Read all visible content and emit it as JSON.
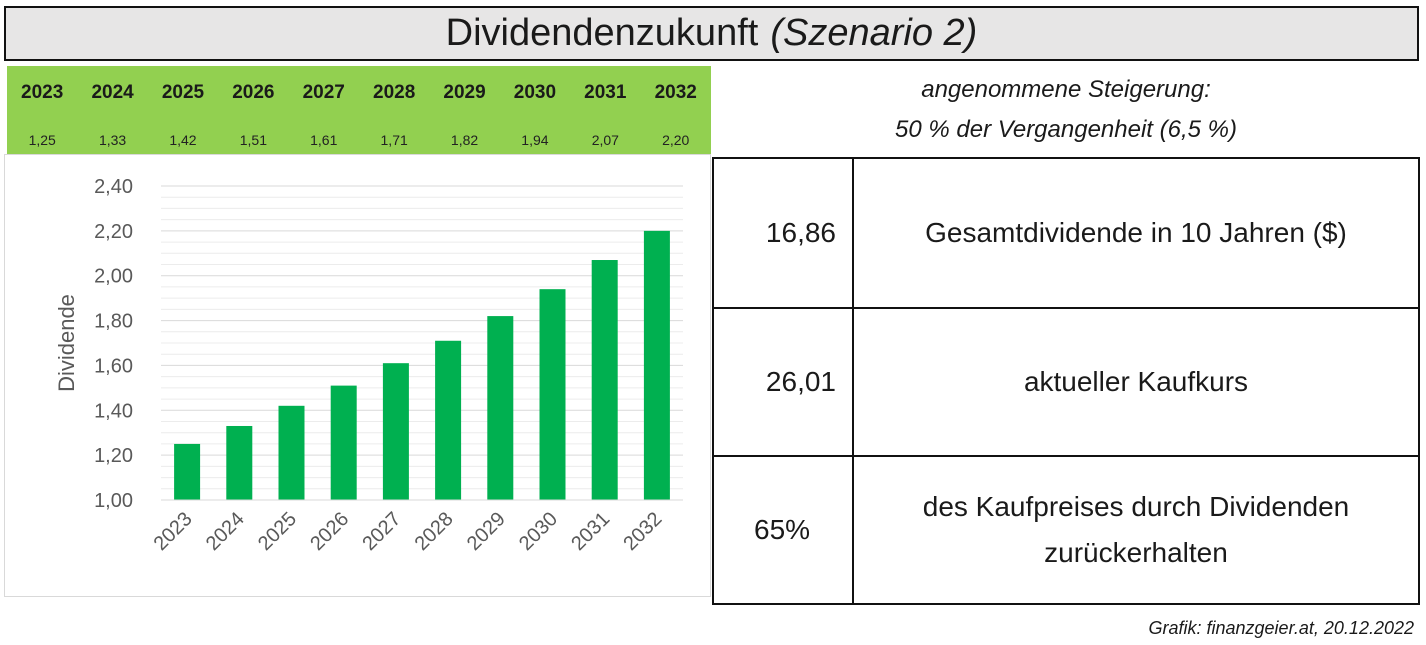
{
  "header": {
    "title": "Dividendenzukunft",
    "subtitle": "(Szenario 2)"
  },
  "assumption": {
    "line1": "angenommene Steigerung:",
    "line2": "50 % der Vergangenheit (6,5 %)"
  },
  "summary": {
    "total_value": "16,86",
    "total_label": "Gesamtdividende in 10 Jahren ($)",
    "price_value": "26,01",
    "price_label": "aktueller Kaufkurs",
    "return_value": "65%",
    "return_label_line1": "des Kaufpreises durch Dividenden",
    "return_label_line2": "zurückerhalten"
  },
  "credit": "Grafik: finanzgeier.at, 20.12.2022",
  "colors": {
    "bar": "#00b050",
    "header_bg": "#92d050",
    "title_bg": "#e7e6e6"
  },
  "chart_data": {
    "type": "bar",
    "title": "",
    "xlabel": "",
    "ylabel": "Dividende",
    "categories": [
      "2023",
      "2024",
      "2025",
      "2026",
      "2027",
      "2028",
      "2029",
      "2030",
      "2031",
      "2032"
    ],
    "values": [
      1.25,
      1.33,
      1.42,
      1.51,
      1.61,
      1.71,
      1.82,
      1.94,
      2.07,
      2.2
    ],
    "value_labels": [
      "1,25",
      "1,33",
      "1,42",
      "1,51",
      "1,61",
      "1,71",
      "1,82",
      "1,94",
      "2,07",
      "2,20"
    ],
    "ylim": [
      1.0,
      2.4
    ],
    "yticks": [
      1.0,
      1.2,
      1.4,
      1.6,
      1.8,
      2.0,
      2.2,
      2.4
    ],
    "ytick_labels": [
      "1,00",
      "1,20",
      "1,40",
      "1,60",
      "1,80",
      "2,00",
      "2,20",
      "2,40"
    ],
    "grid": true
  }
}
